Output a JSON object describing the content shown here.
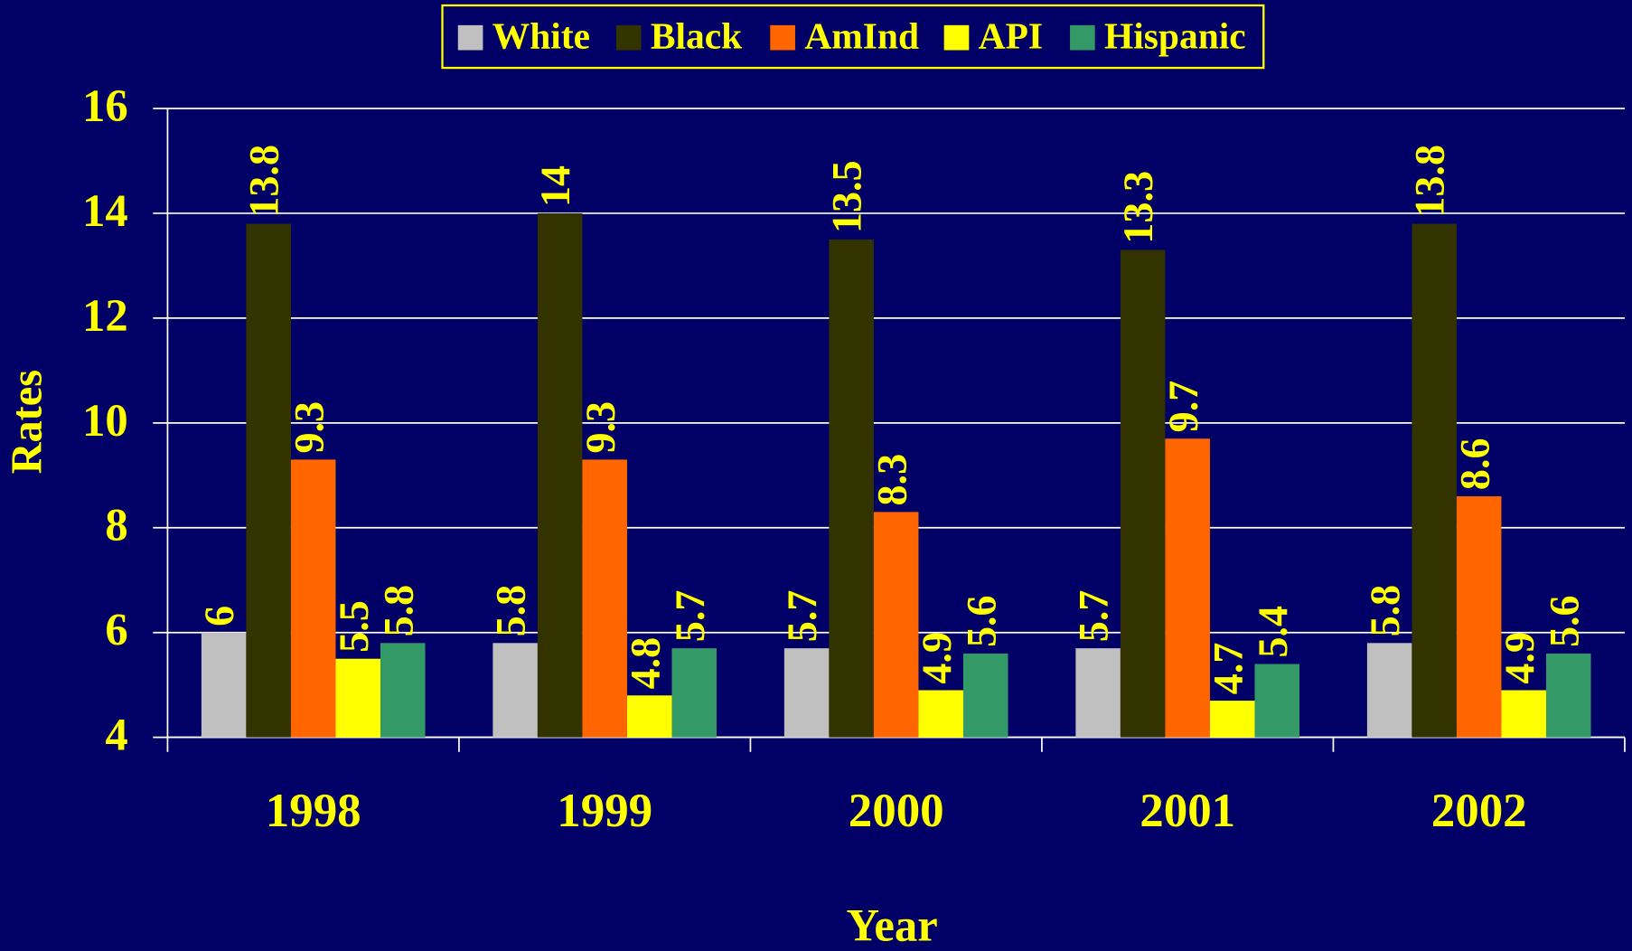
{
  "chart_data": {
    "type": "bar",
    "categories": [
      "1998",
      "1999",
      "2000",
      "2001",
      "2002"
    ],
    "series": [
      {
        "name": "White",
        "color": "#c0c0c0",
        "values": [
          6,
          5.8,
          5.7,
          5.7,
          5.8
        ]
      },
      {
        "name": "Black",
        "color": "#333300",
        "values": [
          13.8,
          14,
          13.5,
          13.3,
          13.8
        ]
      },
      {
        "name": "AmInd",
        "color": "#ff6600",
        "values": [
          9.3,
          9.3,
          8.3,
          9.7,
          8.6
        ]
      },
      {
        "name": "API",
        "color": "#ffff00",
        "values": [
          5.5,
          4.8,
          4.9,
          4.7,
          4.9
        ]
      },
      {
        "name": "Hispanic",
        "color": "#339966",
        "values": [
          5.8,
          5.7,
          5.6,
          5.4,
          5.6
        ]
      }
    ],
    "xlabel": "Year",
    "ylabel": "Rates",
    "ylim": [
      4,
      16
    ],
    "yticks": [
      4,
      6,
      8,
      10,
      12,
      14,
      16
    ],
    "grid": true,
    "legend": "top"
  }
}
